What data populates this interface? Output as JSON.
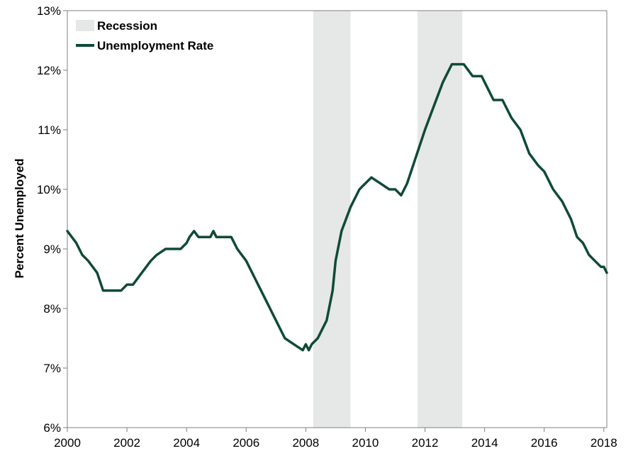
{
  "chart_data": {
    "type": "line",
    "title": "",
    "xlabel": "",
    "ylabel": "Percent Unemployed",
    "xlim": [
      2000,
      2018.1
    ],
    "ylim": [
      6,
      13
    ],
    "x_ticks": [
      "2000",
      "2002",
      "2004",
      "2006",
      "2008",
      "2010",
      "2012",
      "2014",
      "2016",
      "2018"
    ],
    "y_ticks": [
      "6%",
      "7%",
      "8%",
      "9%",
      "10%",
      "11%",
      "12%",
      "13%"
    ],
    "grid": false,
    "legend": {
      "placement": "top-left",
      "entries": [
        {
          "label": "Recession",
          "kind": "band"
        },
        {
          "label": "Unemployment Rate",
          "kind": "line"
        }
      ]
    },
    "colors": {
      "line": "#0f4a39",
      "recession": "#e6e7e7",
      "axis": "#808080"
    },
    "recessions": [
      {
        "start": 2008.25,
        "end": 2009.5
      },
      {
        "start": 2011.75,
        "end": 2013.25
      }
    ],
    "series": [
      {
        "name": "Unemployment Rate",
        "x": [
          2000.0,
          2000.3,
          2000.5,
          2000.7,
          2001.0,
          2001.2,
          2001.5,
          2001.8,
          2002.0,
          2002.2,
          2002.5,
          2002.8,
          2003.0,
          2003.3,
          2003.5,
          2003.8,
          2004.0,
          2004.1,
          2004.25,
          2004.4,
          2004.6,
          2004.8,
          2004.9,
          2005.0,
          2005.3,
          2005.5,
          2005.7,
          2006.0,
          2006.3,
          2006.5,
          2006.8,
          2007.0,
          2007.3,
          2007.6,
          2007.9,
          2008.0,
          2008.1,
          2008.2,
          2008.4,
          2008.7,
          2008.9,
          2009.0,
          2009.2,
          2009.5,
          2009.8,
          2010.0,
          2010.2,
          2010.5,
          2010.8,
          2011.0,
          2011.2,
          2011.4,
          2011.6,
          2011.8,
          2012.0,
          2012.3,
          2012.6,
          2012.9,
          2013.1,
          2013.3,
          2013.6,
          2013.9,
          2014.0,
          2014.1,
          2014.2,
          2014.3,
          2014.4,
          2014.6,
          2014.9,
          2015.2,
          2015.5,
          2015.8,
          2016.0,
          2016.3,
          2016.6,
          2016.9,
          2017.1,
          2017.3,
          2017.5,
          2017.7,
          2017.9,
          2018.0,
          2018.1
        ],
        "values": [
          9.3,
          9.1,
          8.9,
          8.8,
          8.6,
          8.3,
          8.3,
          8.3,
          8.4,
          8.4,
          8.6,
          8.8,
          8.9,
          9.0,
          9.0,
          9.0,
          9.1,
          9.2,
          9.3,
          9.2,
          9.2,
          9.2,
          9.3,
          9.2,
          9.2,
          9.2,
          9.0,
          8.8,
          8.5,
          8.3,
          8.0,
          7.8,
          7.5,
          7.4,
          7.3,
          7.4,
          7.3,
          7.4,
          7.5,
          7.8,
          8.3,
          8.8,
          9.3,
          9.7,
          10.0,
          10.1,
          10.2,
          10.1,
          10.0,
          10.0,
          9.9,
          10.1,
          10.4,
          10.7,
          11.0,
          11.4,
          11.8,
          12.1,
          12.1,
          12.1,
          11.9,
          11.9,
          11.8,
          11.7,
          11.6,
          11.5,
          11.5,
          11.5,
          11.2,
          11.0,
          10.6,
          10.4,
          10.3,
          10.0,
          9.8,
          9.5,
          9.2,
          9.1,
          8.9,
          8.8,
          8.7,
          8.7,
          8.6
        ]
      }
    ]
  }
}
